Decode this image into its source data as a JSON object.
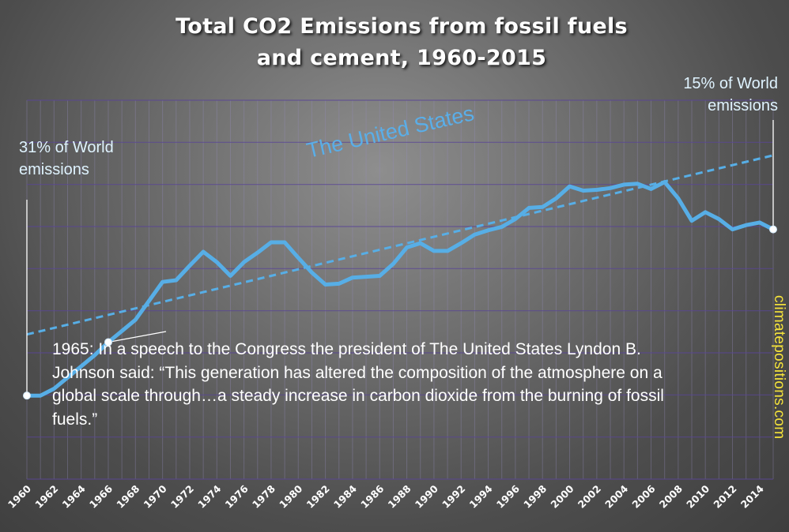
{
  "chart_data": {
    "type": "line",
    "title_lines": [
      "Total CO2 Emissions from fossil fuels",
      "and cement, 1960-2015"
    ],
    "x": [
      1960,
      1961,
      1962,
      1963,
      1964,
      1965,
      1966,
      1967,
      1968,
      1969,
      1970,
      1971,
      1972,
      1973,
      1974,
      1975,
      1976,
      1977,
      1978,
      1979,
      1980,
      1981,
      1982,
      1983,
      1984,
      1985,
      1986,
      1987,
      1988,
      1989,
      1990,
      1991,
      1992,
      1993,
      1994,
      1995,
      1996,
      1997,
      1998,
      1999,
      2000,
      2001,
      2002,
      2003,
      2004,
      2005,
      2006,
      2007,
      2008,
      2009,
      2010,
      2011,
      2012,
      2013,
      2014,
      2015
    ],
    "series": [
      {
        "values": [
          297,
          297,
          305,
          318,
          331,
          344,
          359,
          372,
          385,
          407,
          429,
          431,
          448,
          464,
          452,
          436,
          452,
          463,
          475,
          475,
          457,
          440,
          426,
          427,
          434,
          435,
          436,
          450,
          469,
          474,
          465,
          465,
          474,
          484,
          489,
          493,
          502,
          515,
          516,
          526,
          540,
          535,
          536,
          538,
          542,
          543,
          537,
          545,
          526,
          500,
          510,
          502,
          490,
          495,
          498,
          490
        ],
        "trend": {
          "start": 368,
          "end": 576
        }
      }
    ],
    "x_tick_labels": [
      "1960",
      "1962",
      "1964",
      "1966",
      "1968",
      "1970",
      "1972",
      "1974",
      "1976",
      "1978",
      "1980",
      "1982",
      "1984",
      "1986",
      "1988",
      "1990",
      "1992",
      "1994",
      "1996",
      "1998",
      "2000",
      "2002",
      "2004",
      "2006",
      "2008",
      "2010",
      "2012",
      "2014"
    ],
    "ylim": [
      200,
      640
    ],
    "grid": true,
    "line_color": "#57aee6",
    "trend_color": "#57aee6",
    "label_color": "#dff3ff",
    "source_color": "#f5e33b"
  },
  "annotations": {
    "start_line1": "31% of World",
    "start_line2": "emissions",
    "end_line1": "15% of World",
    "end_line2": "emissions",
    "country": "The United States",
    "quote_line1": "1965: In a speech to the Congress the president of The United States Lyndon B.",
    "quote_line2": "Johnson said: “This generation has altered the composition of the atmosphere on a",
    "quote_line3": "global scale through…a steady increase in carbon dioxide from the burning of fossil",
    "quote_line4": "fuels.”",
    "source": "climatepositions.com"
  }
}
